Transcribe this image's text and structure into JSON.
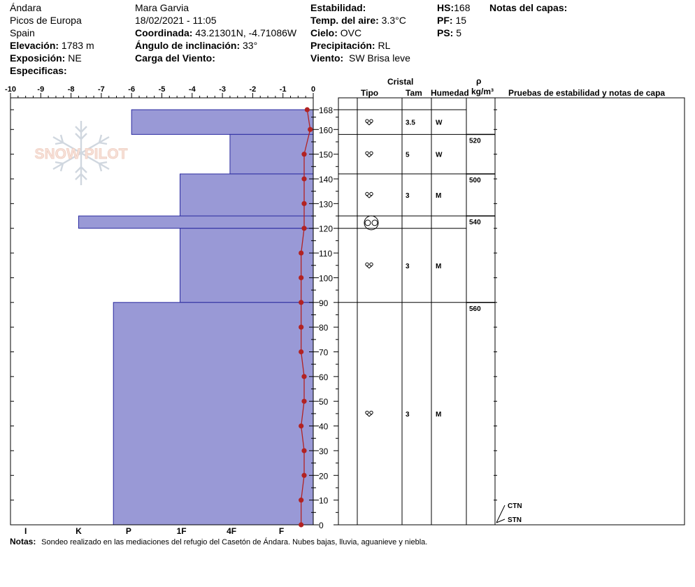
{
  "header": {
    "location": "Ándara",
    "range": "Picos de Europa",
    "country": "Spain",
    "elevation_label": "Elevación:",
    "elevation_value": "1783 m",
    "aspect_label": "Exposición:",
    "aspect_value": "NE",
    "specifics_label": "Especificas:",
    "observer": "Mara Garvia",
    "datetime": "18/02/2021 - 11:05",
    "coord_label": "Coordinada:",
    "coord_value": "43.21301N, -4.71086W",
    "slope_label": "Ángulo de inclinación:",
    "slope_value": "33°",
    "wind_load_label": "Carga del Viento:",
    "stability_label": "Estabilidad:",
    "air_temp_label": "Temp. del aire:",
    "air_temp_value": "3.3°C",
    "sky_label": "Cielo:",
    "sky_value": "OVC",
    "precip_label": "Precipitación:",
    "precip_value": "RL",
    "wind_label": "Viento:",
    "wind_value": "SW Brisa leve",
    "hs_label": "HS:",
    "hs_value": "168",
    "pf_label": "PF:",
    "pf_value": "15",
    "ps_label": "PS:",
    "ps_value": "5",
    "layer_notes_label": "Notas del capas:"
  },
  "columns": {
    "crystal": "Cristal",
    "type": "Tipo",
    "size": "Tam",
    "moisture": "Humedad",
    "rho": "ρ",
    "density_unit": "kg/m³",
    "tests": "Pruebas de estabilidad y notas de capa"
  },
  "notes": {
    "label": "Notas:",
    "text": "Sondeo realizado en las mediaciones del  refugio del Casetón de Ándara. Nubes bajas, lluvia, aguanieve y niebla."
  },
  "logo": {
    "text": "SNOW PILOT"
  },
  "colors": {
    "hardness_fill": "#9999d6",
    "temperature": "#b22222"
  },
  "chart_data": {
    "type": "bar",
    "temp_axis": {
      "ticks": [
        "-10",
        "-9",
        "-8",
        "-7",
        "-6",
        "-5",
        "-4",
        "-3",
        "-2",
        "-1",
        "0"
      ],
      "range": [
        -10,
        0
      ]
    },
    "hardness_axis": {
      "labels": [
        "I",
        "K",
        "P",
        "1F",
        "4F",
        "F"
      ],
      "values": [
        -9.5,
        -7.75,
        -6.1,
        -4.35,
        -2.7,
        -1.05
      ]
    },
    "height_axis": {
      "ticks": [
        "0",
        "10",
        "20",
        "30",
        "40",
        "50",
        "60",
        "70",
        "80",
        "90",
        "100",
        "110",
        "120",
        "130",
        "140",
        "150",
        "160",
        "168"
      ],
      "range": [
        0,
        168
      ]
    },
    "hardness_layers": [
      {
        "top": 168,
        "bottom": 158,
        "value": -6.0
      },
      {
        "top": 158,
        "bottom": 142,
        "value": -2.75
      },
      {
        "top": 142,
        "bottom": 125,
        "value": -4.4
      },
      {
        "top": 125,
        "bottom": 120,
        "value": -7.75
      },
      {
        "top": 120,
        "bottom": 90,
        "value": -4.4
      },
      {
        "top": 90,
        "bottom": 0,
        "value": -6.6
      }
    ],
    "temperature_profile": [
      {
        "h": 168,
        "t": -0.2
      },
      {
        "h": 160,
        "t": -0.1
      },
      {
        "h": 150,
        "t": -0.3
      },
      {
        "h": 140,
        "t": -0.3
      },
      {
        "h": 130,
        "t": -0.3
      },
      {
        "h": 120,
        "t": -0.3
      },
      {
        "h": 110,
        "t": -0.4
      },
      {
        "h": 100,
        "t": -0.4
      },
      {
        "h": 90,
        "t": -0.4
      },
      {
        "h": 80,
        "t": -0.4
      },
      {
        "h": 70,
        "t": -0.4
      },
      {
        "h": 60,
        "t": -0.3
      },
      {
        "h": 50,
        "t": -0.3
      },
      {
        "h": 40,
        "t": -0.4
      },
      {
        "h": 30,
        "t": -0.3
      },
      {
        "h": 20,
        "t": -0.3
      },
      {
        "h": 10,
        "t": -0.4
      },
      {
        "h": 0,
        "t": -0.4
      }
    ],
    "layers": [
      {
        "top": 168,
        "bottom": 158,
        "grain": "rounding-faceted",
        "size": "3.5",
        "moisture": "W"
      },
      {
        "top": 158,
        "bottom": 142,
        "grain": "rounding-faceted",
        "size": "5",
        "moisture": "W"
      },
      {
        "top": 142,
        "bottom": 125,
        "grain": "rounding-faceted",
        "size": "3",
        "moisture": "M"
      },
      {
        "top": 125,
        "bottom": 120,
        "grain": "melt-freeze",
        "size": "",
        "moisture": ""
      },
      {
        "top": 120,
        "bottom": 90,
        "grain": "rounding-faceted",
        "size": "3",
        "moisture": "M"
      },
      {
        "top": 90,
        "bottom": 0,
        "grain": "rounding-faceted",
        "size": "3",
        "moisture": "M"
      }
    ],
    "densities": [
      {
        "h": 158,
        "value": "520"
      },
      {
        "h": 142,
        "value": "500"
      },
      {
        "h": 125,
        "value": "540"
      },
      {
        "h": 90,
        "value": "560"
      }
    ],
    "stability_tests": [
      {
        "label": "CTN"
      },
      {
        "label": "STN"
      }
    ]
  }
}
